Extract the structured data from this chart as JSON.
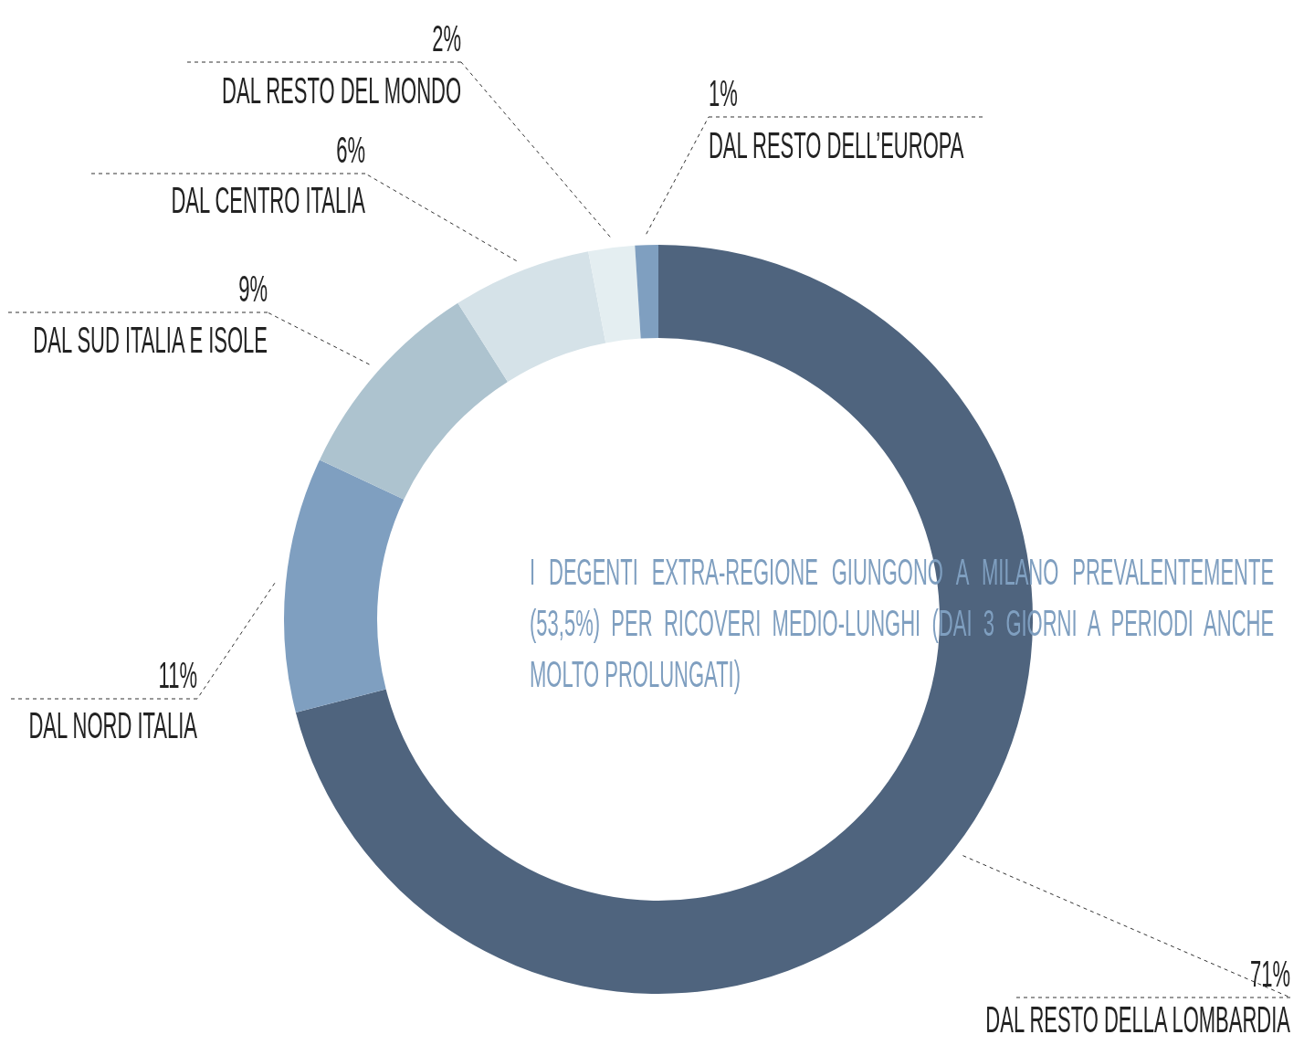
{
  "chart_data": {
    "type": "donut",
    "categories": [
      "DAL RESTO DELLA LOMBARDIA",
      "DAL NORD ITALIA",
      "DAL SUD ITALIA E ISOLE",
      "DAL CENTRO ITALIA",
      "DAL RESTO DEL MONDO",
      "DAL RESTO DELL’EUROPA"
    ],
    "values": [
      71,
      11,
      9,
      6,
      2,
      1
    ],
    "colors": [
      "#4f647e",
      "#7f9fc0",
      "#adc3cf",
      "#d5e2e8",
      "#e4eef1",
      "#7f9fc0"
    ],
    "value_labels": [
      "71%",
      "11%",
      "9%",
      "6%",
      "2%",
      "1%"
    ],
    "legend": false,
    "annotations": [
      "I DEGENTI EXTRA-REGIONE GIUNGONO A MILANO PREVALENTEMENTE (53,5%) PER RICOVERI MEDIO-LUNGHI (DAI 3 GIORNI A PERIODI ANCHE MOLTO PROLUNGATI)"
    ]
  }
}
